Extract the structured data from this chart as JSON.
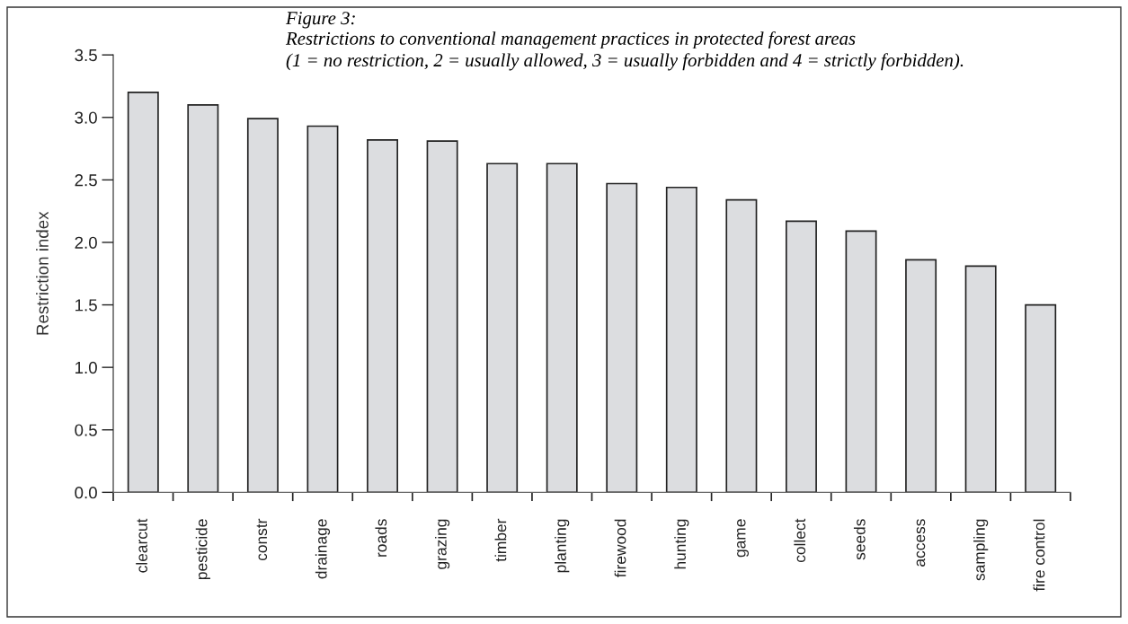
{
  "chart_data": {
    "type": "bar",
    "title": "Figure 3:",
    "subtitle": "Restrictions to conventional management practices in protected forest areas\n(1 = no restriction, 2 = usually allowed, 3 = usually forbidden and 4 = strictly forbidden).",
    "ylabel": "Restriction index",
    "categories": [
      "clearcut",
      "pesticide",
      "constr",
      "drainage",
      "roads",
      "grazing",
      "timber",
      "planting",
      "firewood",
      "hunting",
      "game",
      "collect",
      "seeds",
      "access",
      "sampling",
      "fire control"
    ],
    "values": [
      3.2,
      3.1,
      2.99,
      2.93,
      2.82,
      2.81,
      2.63,
      2.63,
      2.47,
      2.44,
      2.34,
      2.17,
      2.09,
      1.86,
      1.81,
      1.5
    ],
    "color": "#dcdde0",
    "ylim": [
      0,
      3.5
    ],
    "yticks": [
      {
        "value": 0,
        "label": "0.0"
      },
      0.5,
      {
        "value": 1,
        "label": "1.0"
      },
      1.5,
      {
        "value": 2,
        "label": "2.0"
      },
      2.5,
      {
        "value": 3,
        "label": "3.0"
      },
      3.5
    ],
    "grid": false,
    "legend": false
  }
}
